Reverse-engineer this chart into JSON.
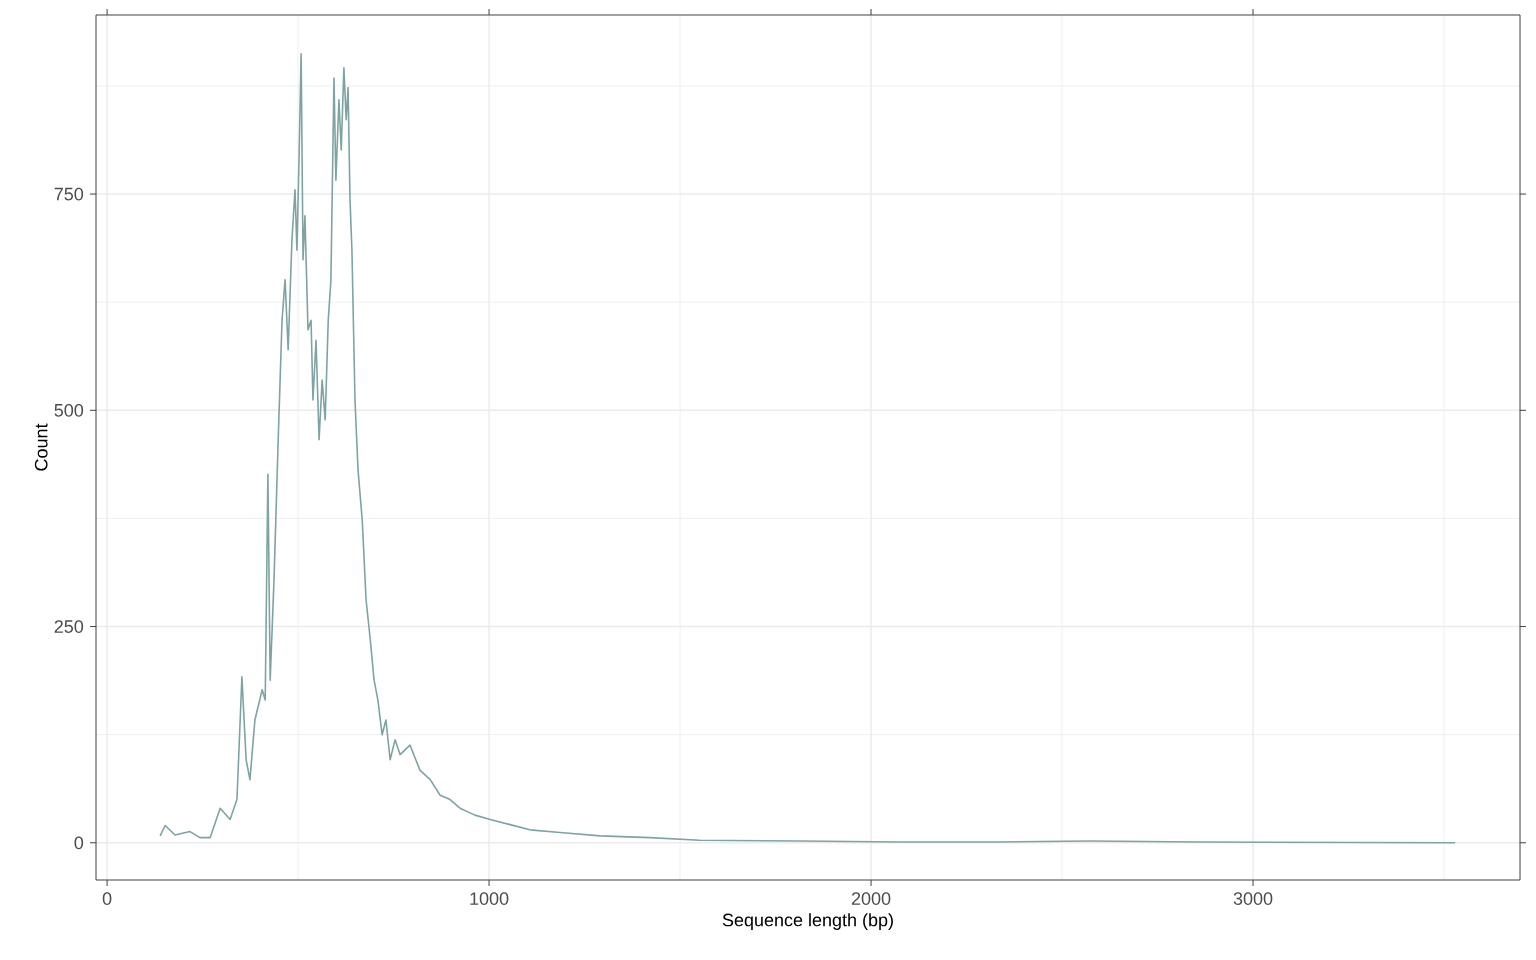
{
  "chart_data": {
    "type": "line",
    "xlabel": "Sequence length (bp)",
    "ylabel": "Count",
    "xlim": [
      -29,
      3699
    ],
    "ylim": [
      -43,
      957
    ],
    "xticks": [
      0,
      1000,
      2000,
      3000
    ],
    "yticks": [
      0,
      250,
      500,
      750
    ],
    "grid": true,
    "marker": "none",
    "line_style": "solid",
    "series": [
      {
        "color": "#7fa3a3",
        "x": [
          139,
          152,
          178,
          217,
          243,
          270,
          296,
          322,
          340,
          353,
          364,
          374,
          387,
          406,
          414,
          421,
          427,
          437,
          448,
          458,
          466,
          474,
          484,
          492,
          497,
          503,
          508,
          513,
          518,
          526,
          534,
          539,
          547,
          555,
          563,
          571,
          579,
          586,
          594,
          599,
          607,
          613,
          620,
          626,
          631,
          636,
          641,
          649,
          657,
          668,
          678,
          689,
          699,
          709,
          720,
          730,
          741,
          754,
          767,
          793,
          819,
          846,
          872,
          898,
          924,
          963,
          1003,
          1055,
          1107,
          1186,
          1291,
          1421,
          1552,
          1814,
          2076,
          2338,
          2573,
          2861,
          3529
        ],
        "values": [
          8,
          20,
          9,
          13,
          6,
          6,
          40,
          27,
          50,
          192,
          96,
          73,
          142,
          177,
          165,
          426,
          188,
          304,
          466,
          604,
          651,
          570,
          697,
          755,
          685,
          801,
          912,
          674,
          725,
          593,
          604,
          512,
          581,
          466,
          535,
          489,
          604,
          651,
          884,
          766,
          859,
          801,
          896,
          836,
          873,
          743,
          685,
          512,
          431,
          373,
          281,
          235,
          188,
          165,
          125,
          142,
          96,
          119,
          102,
          113,
          84,
          73,
          55,
          50,
          40,
          32,
          27,
          21,
          15,
          12,
          8,
          6,
          3,
          2,
          1,
          1,
          2,
          1,
          0
        ]
      }
    ]
  }
}
